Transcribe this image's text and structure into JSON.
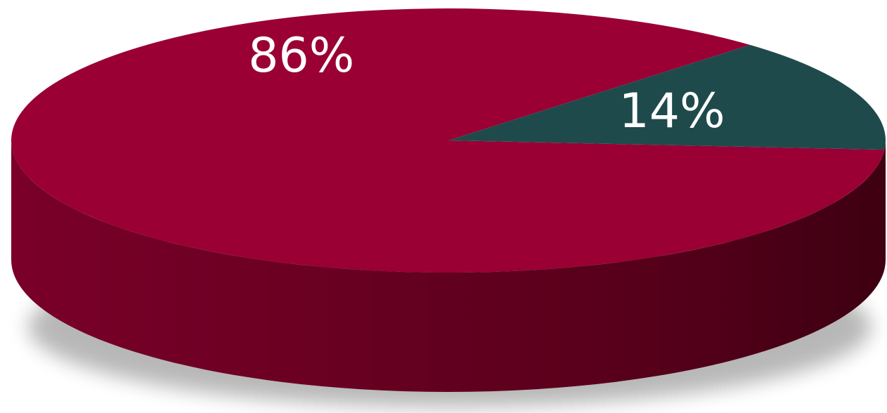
{
  "chart_data": {
    "type": "pie",
    "style": "3d",
    "slices": [
      {
        "label": "86%",
        "value": 86,
        "color": "#9a0033"
      },
      {
        "label": "14%",
        "value": 14,
        "color": "#1f4a4c"
      }
    ]
  }
}
